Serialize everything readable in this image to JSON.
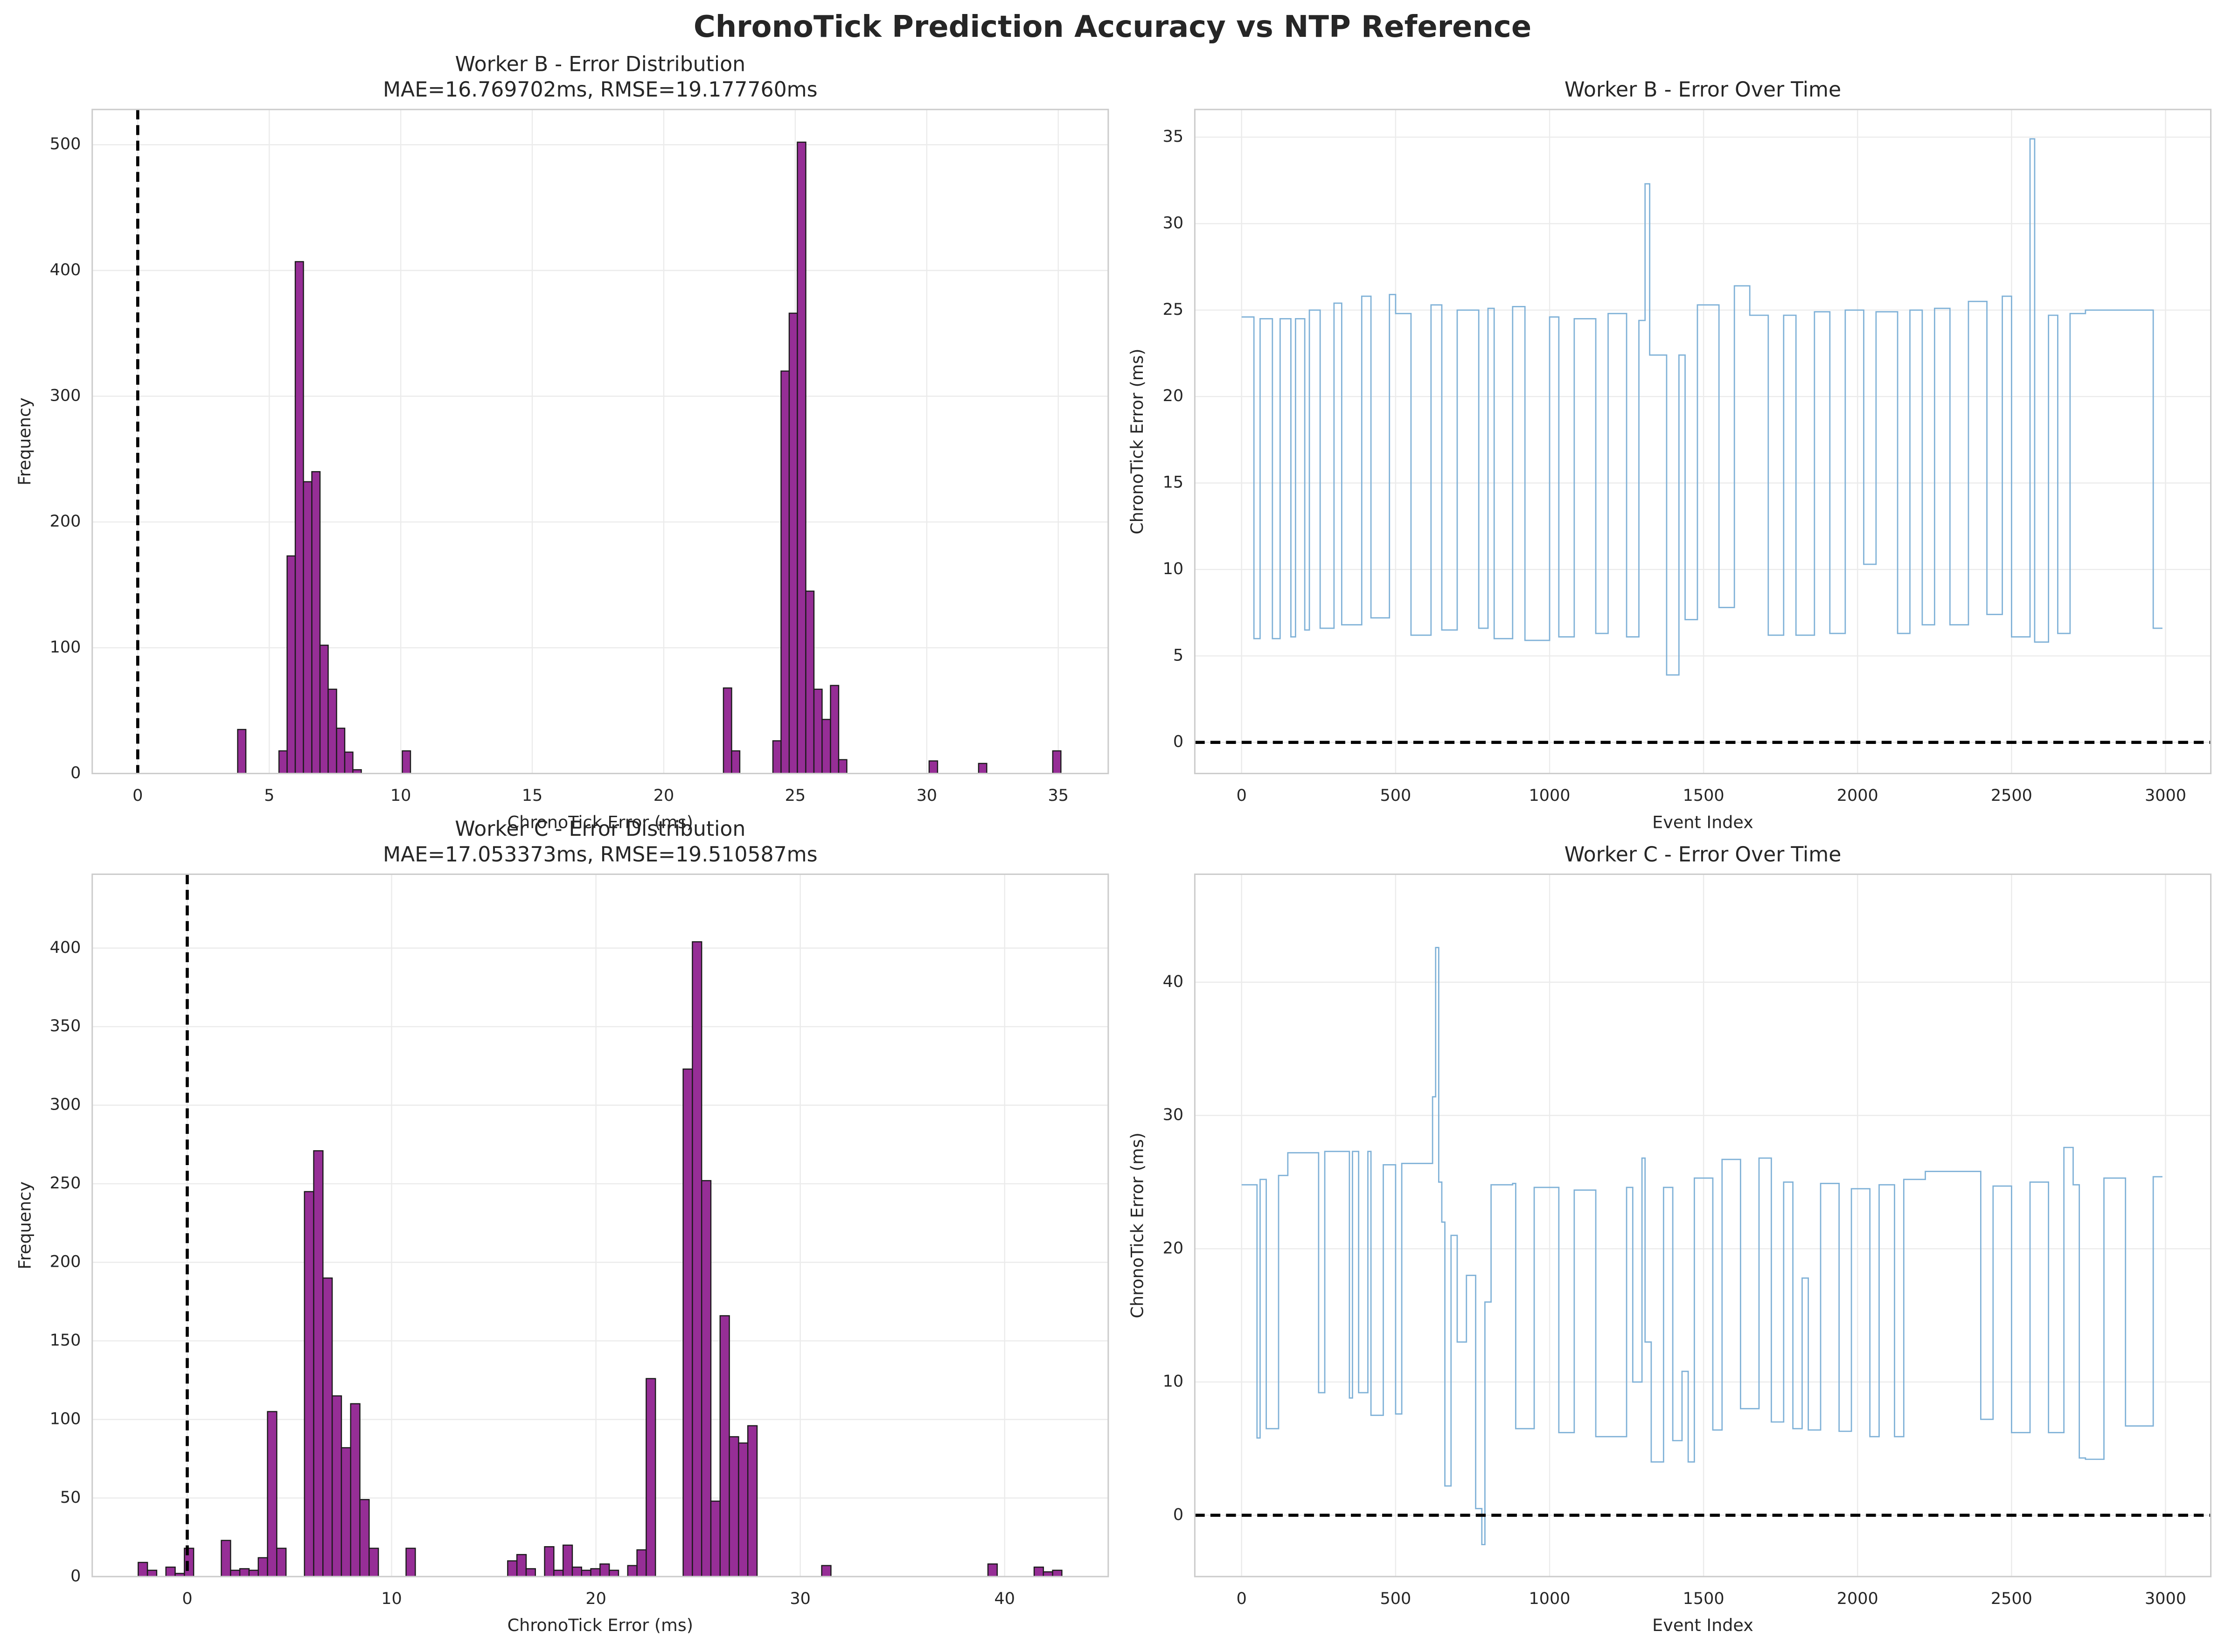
{
  "title": "ChronoTick Prediction Accuracy vs NTP Reference",
  "chart_data": [
    {
      "type": "histogram",
      "title": "Worker B - Error Distribution",
      "subtitle": "MAE=16.769702ms, RMSE=19.177760ms",
      "xlabel": "ChronoTick Error (ms)",
      "ylabel": "Frequency",
      "bins": [
        3.8,
        4.11,
        5.37,
        5.68,
        5.99,
        6.3,
        6.62,
        6.93,
        7.24,
        7.56,
        7.87,
        8.18,
        8.5,
        10.06,
        10.37,
        22.27,
        22.58,
        22.89,
        24.15,
        24.46,
        24.77,
        25.08,
        25.4,
        25.71,
        26.02,
        26.34,
        26.65,
        26.96,
        30.09,
        30.41,
        31.97,
        32.28,
        34.79,
        35.1
      ],
      "values": [
        35,
        0,
        18,
        173,
        407,
        232,
        240,
        102,
        67,
        36,
        17,
        3,
        0,
        18,
        0,
        68,
        18,
        0,
        26,
        320,
        366,
        502,
        145,
        67,
        43,
        70,
        11,
        0,
        10,
        0,
        8,
        0,
        18
      ],
      "color": "#962e96",
      "edgecolor": "#1a1a1a",
      "xlim": [
        -1.73,
        36.9
      ],
      "ylim": [
        0,
        528
      ],
      "xticks": [
        0,
        5,
        10,
        15,
        20,
        25,
        30,
        35
      ],
      "yticks": [
        0,
        100,
        200,
        300,
        400,
        500
      ],
      "grid": true,
      "vline": 0
    },
    {
      "type": "line",
      "title": "Worker B - Error Over Time",
      "xlabel": "Event Index",
      "ylabel": "ChronoTick Error (ms)",
      "x": [
        0,
        40,
        40,
        60,
        60,
        100,
        100,
        125,
        125,
        160,
        160,
        175,
        175,
        205,
        205,
        220,
        220,
        255,
        255,
        300,
        300,
        325,
        325,
        390,
        390,
        420,
        420,
        480,
        480,
        500,
        500,
        550,
        550,
        615,
        615,
        650,
        650,
        700,
        700,
        770,
        770,
        800,
        800,
        820,
        820,
        880,
        880,
        920,
        920,
        1000,
        1000,
        1030,
        1030,
        1080,
        1080,
        1150,
        1150,
        1190,
        1190,
        1250,
        1250,
        1290,
        1290,
        1310,
        1310,
        1325,
        1325,
        1380,
        1380,
        1420,
        1420,
        1440,
        1440,
        1480,
        1480,
        1550,
        1550,
        1600,
        1600,
        1650,
        1650,
        1710,
        1710,
        1760,
        1760,
        1800,
        1800,
        1860,
        1860,
        1910,
        1910,
        1960,
        1960,
        2020,
        2020,
        2060,
        2060,
        2130,
        2130,
        2170,
        2170,
        2210,
        2210,
        2250,
        2250,
        2300,
        2300,
        2360,
        2360,
        2420,
        2420,
        2470,
        2470,
        2500,
        2500,
        2560,
        2560,
        2575,
        2575,
        2620,
        2620,
        2650,
        2650,
        2690,
        2690,
        2740,
        2740,
        2960,
        2960,
        2990
      ],
      "values": [
        24.6,
        24.6,
        6,
        6,
        24.5,
        24.5,
        6,
        6,
        24.5,
        24.5,
        6.1,
        6.1,
        24.5,
        24.5,
        6.5,
        6.5,
        25,
        25,
        6.6,
        6.6,
        25.4,
        25.4,
        6.8,
        6.8,
        25.8,
        25.8,
        7.2,
        7.2,
        25.9,
        25.9,
        24.8,
        24.8,
        6.2,
        6.2,
        25.3,
        25.3,
        6.5,
        6.5,
        25,
        25,
        6.6,
        6.6,
        25.1,
        25.1,
        6,
        6,
        25.2,
        25.2,
        5.9,
        5.9,
        24.6,
        24.6,
        6.1,
        6.1,
        24.5,
        24.5,
        6.3,
        6.3,
        24.8,
        24.8,
        6.1,
        6.1,
        24.4,
        24.4,
        32.3,
        32.3,
        22.4,
        22.4,
        3.9,
        3.9,
        22.4,
        22.4,
        7.1,
        7.1,
        25.3,
        25.3,
        7.8,
        7.8,
        26.4,
        26.4,
        24.7,
        24.7,
        6.2,
        6.2,
        24.7,
        24.7,
        6.2,
        6.2,
        24.9,
        24.9,
        6.3,
        6.3,
        25,
        25,
        10.3,
        10.3,
        24.9,
        24.9,
        6.3,
        6.3,
        25,
        25,
        6.8,
        6.8,
        25.1,
        25.1,
        6.8,
        6.8,
        25.5,
        25.5,
        7.4,
        7.4,
        25.8,
        25.8,
        6.1,
        6.1,
        34.9,
        34.9,
        5.8,
        5.8,
        24.7,
        24.7,
        6.3,
        6.3,
        24.8,
        24.8,
        25,
        25,
        6.6,
        6.6
      ],
      "color": "#7fb1d7",
      "xlim": [
        -152,
        3147
      ],
      "ylim": [
        -1.8,
        36.6
      ],
      "xticks": [
        0,
        500,
        1000,
        1500,
        2000,
        2500,
        3000
      ],
      "yticks": [
        0,
        5,
        10,
        15,
        20,
        25,
        30,
        35
      ],
      "grid": true,
      "hline": 0
    },
    {
      "type": "histogram",
      "title": "Worker C - Error Distribution",
      "subtitle": "MAE=17.053373ms, RMSE=19.510587ms",
      "xlabel": "ChronoTick Error (ms)",
      "ylabel": "Frequency",
      "bins": [
        -2.4,
        -1.948,
        -1.496,
        -1.044,
        -0.592,
        -0.14,
        0.312,
        1.668,
        2.12,
        2.572,
        3.024,
        3.476,
        3.928,
        4.38,
        4.832,
        5.736,
        6.188,
        6.64,
        7.092,
        7.544,
        7.996,
        8.448,
        8.9,
        9.352,
        10.708,
        11.16,
        15.68,
        16.132,
        16.584,
        17.036,
        17.488,
        17.94,
        18.392,
        18.844,
        19.296,
        19.748,
        20.2,
        20.652,
        21.104,
        21.556,
        22.008,
        22.46,
        22.912,
        24.268,
        24.72,
        25.172,
        25.624,
        26.076,
        26.528,
        26.98,
        27.432,
        27.884,
        31.048,
        31.5,
        39.184,
        39.636,
        41.444,
        41.896,
        42.348,
        42.8
      ],
      "values": [
        9,
        4,
        0,
        6,
        2,
        18,
        0,
        23,
        4,
        5,
        4,
        12,
        105,
        18,
        0,
        245,
        271,
        190,
        115,
        82,
        110,
        49,
        18,
        0,
        18,
        0,
        10,
        14,
        5,
        0,
        19,
        4,
        20,
        6,
        4,
        5,
        8,
        4,
        0,
        7,
        17,
        126,
        0,
        323,
        404,
        252,
        48,
        166,
        89,
        85,
        96,
        0,
        7,
        0,
        8,
        0,
        6,
        3,
        4
      ],
      "color": "#962e96",
      "edgecolor": "#1a1a1a",
      "xlim": [
        -4.65,
        45.07
      ],
      "ylim": [
        0,
        447
      ],
      "xticks": [
        0,
        10,
        20,
        30,
        40
      ],
      "yticks": [
        0,
        50,
        100,
        150,
        200,
        250,
        300,
        350,
        400
      ],
      "grid": true,
      "vline": 0
    },
    {
      "type": "line",
      "title": "Worker C - Error Over Time",
      "xlabel": "Event Index",
      "ylabel": "ChronoTick Error (ms)",
      "x": [
        0,
        50,
        50,
        60,
        60,
        80,
        80,
        120,
        120,
        150,
        150,
        250,
        250,
        270,
        270,
        350,
        350,
        360,
        360,
        380,
        380,
        410,
        410,
        420,
        420,
        460,
        460,
        500,
        500,
        520,
        520,
        620,
        620,
        630,
        630,
        640,
        640,
        650,
        650,
        660,
        660,
        680,
        680,
        700,
        700,
        730,
        730,
        760,
        760,
        780,
        780,
        790,
        790,
        810,
        810,
        880,
        880,
        890,
        890,
        950,
        950,
        1030,
        1030,
        1080,
        1080,
        1150,
        1150,
        1250,
        1250,
        1270,
        1270,
        1300,
        1300,
        1310,
        1310,
        1330,
        1330,
        1370,
        1370,
        1400,
        1400,
        1430,
        1430,
        1450,
        1450,
        1470,
        1470,
        1530,
        1530,
        1560,
        1560,
        1620,
        1620,
        1680,
        1680,
        1720,
        1720,
        1760,
        1760,
        1790,
        1790,
        1820,
        1820,
        1840,
        1840,
        1880,
        1880,
        1940,
        1940,
        1980,
        1980,
        2040,
        2040,
        2070,
        2070,
        2120,
        2120,
        2150,
        2150,
        2220,
        2220,
        2400,
        2400,
        2440,
        2440,
        2500,
        2500,
        2560,
        2560,
        2620,
        2620,
        2670,
        2670,
        2700,
        2700,
        2720,
        2720,
        2740,
        2740,
        2800,
        2800,
        2870,
        2870,
        2960,
        2960,
        2990
      ],
      "values": [
        24.8,
        24.8,
        5.8,
        5.8,
        25.2,
        25.2,
        6.5,
        6.5,
        25.5,
        25.5,
        27.2,
        27.2,
        9.2,
        9.2,
        27.3,
        27.3,
        8.8,
        8.8,
        27.3,
        27.3,
        9.2,
        9.2,
        27.3,
        27.3,
        7.5,
        7.5,
        26.3,
        26.3,
        7.6,
        7.6,
        26.4,
        26.4,
        31.4,
        31.4,
        42.6,
        42.6,
        25,
        25,
        22,
        22,
        2.2,
        2.2,
        21,
        21,
        13,
        13,
        18,
        18,
        0.5,
        0.5,
        -2.2,
        -2.2,
        16,
        16,
        24.8,
        24.8,
        24.9,
        24.9,
        6.5,
        6.5,
        24.6,
        24.6,
        6.2,
        6.2,
        24.4,
        24.4,
        5.9,
        5.9,
        24.6,
        24.6,
        10,
        10,
        26.8,
        26.8,
        13,
        13,
        4,
        4,
        24.6,
        24.6,
        5.6,
        5.6,
        10.8,
        10.8,
        4,
        4,
        25.3,
        25.3,
        6.4,
        6.4,
        26.7,
        26.7,
        8,
        8,
        26.8,
        26.8,
        7,
        7,
        25,
        25,
        6.5,
        6.5,
        17.8,
        17.8,
        6.4,
        6.4,
        24.9,
        24.9,
        6.3,
        6.3,
        24.5,
        24.5,
        5.9,
        5.9,
        24.8,
        24.8,
        5.9,
        5.9,
        25.2,
        25.2,
        25.8,
        25.8,
        7.2,
        7.2,
        24.7,
        24.7,
        6.2,
        6.2,
        25,
        25,
        6.2,
        6.2,
        27.6,
        27.6,
        24.8,
        24.8,
        4.3,
        4.3,
        4.2,
        4.2,
        25.3,
        25.3,
        6.7,
        6.7,
        25.4,
        25.4
      ],
      "color": "#7fb1d7",
      "xlim": [
        -152,
        3147
      ],
      "ylim": [
        -4.6,
        48.1
      ],
      "xticks": [
        0,
        500,
        1000,
        1500,
        2000,
        2500,
        3000
      ],
      "yticks": [
        0,
        10,
        20,
        30,
        40
      ],
      "grid": true,
      "hline": 0
    }
  ]
}
